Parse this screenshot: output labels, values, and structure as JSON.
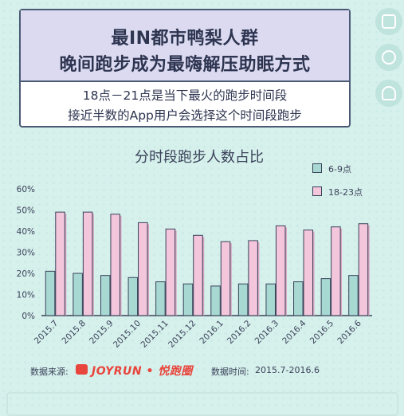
{
  "header": {
    "title_line1": "最IN都市鸭梨人群",
    "title_line2": "晚间跑步成为最嗨解压助眠方式",
    "sub_line1": "18点－21点是当下最火的跑步时间段",
    "sub_line2": "接近半数的App用户会选择这个时间段跑步"
  },
  "side_icons": [
    "list-icon",
    "heart-icon",
    "person-icon"
  ],
  "chart_data": {
    "type": "bar",
    "title": "分时段跑步人数占比",
    "categories": [
      "2015.7",
      "2015.8",
      "2015.9",
      "2015.10",
      "2015.11",
      "2015.12",
      "2016.1",
      "2016.2",
      "2016.3",
      "2016.4",
      "2016.5",
      "2016.6"
    ],
    "series": [
      {
        "name": "6-9点",
        "color": "#a7d9d2",
        "values": [
          21,
          20,
          19,
          18,
          16,
          15,
          14,
          15,
          15,
          16,
          17.5,
          19
        ]
      },
      {
        "name": "18-23点",
        "color": "#f3c6dc",
        "values": [
          49,
          49,
          48,
          44,
          41,
          38,
          35,
          35.5,
          42.5,
          40.5,
          42,
          43.5
        ]
      }
    ],
    "yticks": [
      "0%",
      "10%",
      "20%",
      "30%",
      "40%",
      "50%",
      "60%"
    ],
    "ylim": [
      0,
      60
    ],
    "legend_position": "top-right"
  },
  "footer": {
    "source_label": "数据来源:",
    "brand": "JOYRUN • 悦跑圈",
    "time_label": "数据时间:",
    "time_value": "2015.7-2016.6"
  }
}
